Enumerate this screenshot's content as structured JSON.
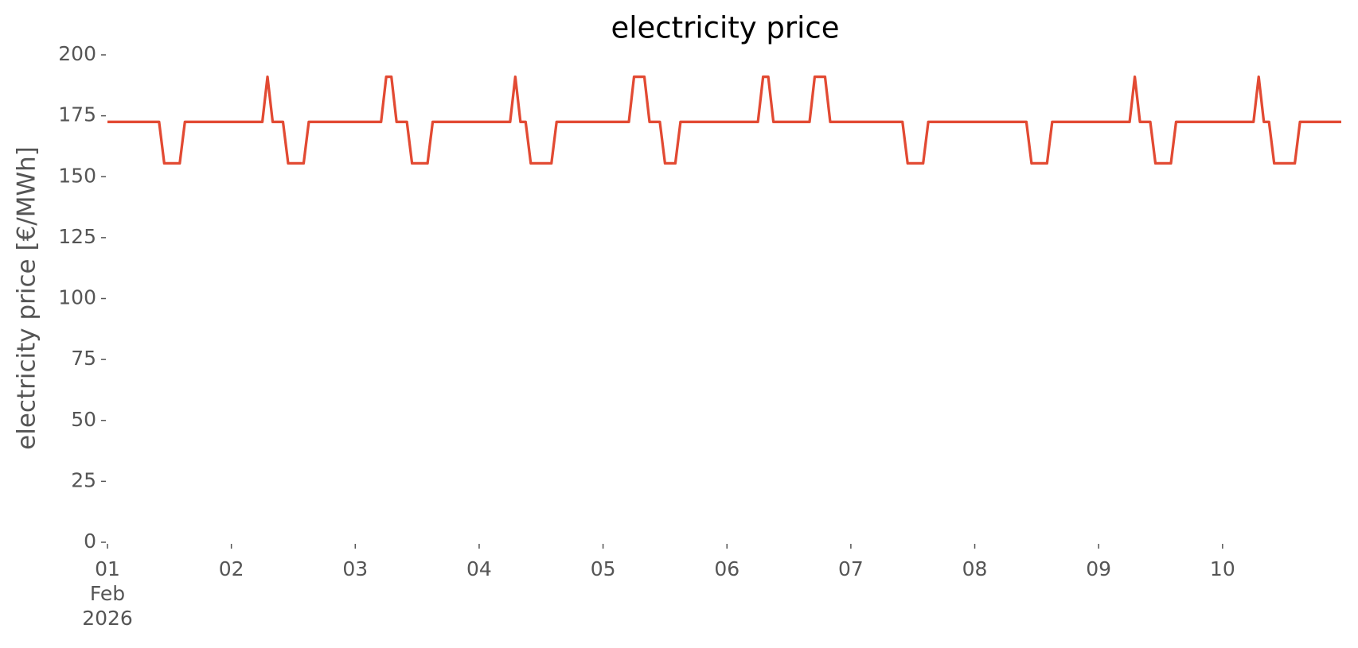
{
  "chart_data": {
    "type": "line",
    "title": "electricity price",
    "ylabel": "electricity price [€/MWh]",
    "series": [
      {
        "name": "electricity price",
        "color": "#e24a33",
        "x": [
          "2026-02-01T00:00",
          "2026-02-01T10:00",
          "2026-02-01T11:00",
          "2026-02-01T14:00",
          "2026-02-01T15:00",
          "2026-02-02T06:00",
          "2026-02-02T07:00",
          "2026-02-02T08:00",
          "2026-02-02T10:00",
          "2026-02-02T11:00",
          "2026-02-02T14:00",
          "2026-02-02T15:00",
          "2026-02-03T05:00",
          "2026-02-03T06:00",
          "2026-02-03T07:00",
          "2026-02-03T08:00",
          "2026-02-03T10:00",
          "2026-02-03T11:00",
          "2026-02-03T14:00",
          "2026-02-03T15:00",
          "2026-02-04T06:00",
          "2026-02-04T07:00",
          "2026-02-04T08:00",
          "2026-02-04T09:00",
          "2026-02-04T10:00",
          "2026-02-04T14:00",
          "2026-02-04T15:00",
          "2026-02-05T05:00",
          "2026-02-05T06:00",
          "2026-02-05T08:00",
          "2026-02-05T09:00",
          "2026-02-05T11:00",
          "2026-02-05T12:00",
          "2026-02-05T14:00",
          "2026-02-05T15:00",
          "2026-02-06T06:00",
          "2026-02-06T07:00",
          "2026-02-06T08:00",
          "2026-02-06T09:00",
          "2026-02-06T16:00",
          "2026-02-06T17:00",
          "2026-02-06T19:00",
          "2026-02-06T20:00",
          "2026-02-07T10:00",
          "2026-02-07T11:00",
          "2026-02-07T14:00",
          "2026-02-07T15:00",
          "2026-02-08T10:00",
          "2026-02-08T11:00",
          "2026-02-08T14:00",
          "2026-02-08T15:00",
          "2026-02-09T06:00",
          "2026-02-09T07:00",
          "2026-02-09T08:00",
          "2026-02-09T10:00",
          "2026-02-09T11:00",
          "2026-02-09T14:00",
          "2026-02-09T15:00",
          "2026-02-10T06:00",
          "2026-02-10T07:00",
          "2026-02-10T08:00",
          "2026-02-10T09:00",
          "2026-02-10T10:00",
          "2026-02-10T14:00",
          "2026-02-10T15:00",
          "2026-02-10T23:00"
        ],
        "values": [
          172.5,
          172.5,
          155.5,
          155.5,
          172.5,
          172.5,
          191,
          172.5,
          172.5,
          155.5,
          155.5,
          172.5,
          172.5,
          191,
          191,
          172.5,
          172.5,
          155.5,
          155.5,
          172.5,
          172.5,
          191,
          172.5,
          172.5,
          155.5,
          155.5,
          172.5,
          172.5,
          191,
          191,
          172.5,
          172.5,
          155.5,
          155.5,
          172.5,
          172.5,
          191,
          191,
          172.5,
          172.5,
          191,
          191,
          172.5,
          172.5,
          155.5,
          155.5,
          172.5,
          172.5,
          155.5,
          155.5,
          172.5,
          172.5,
          191,
          172.5,
          172.5,
          155.5,
          155.5,
          172.5,
          172.5,
          191,
          172.5,
          172.5,
          155.5,
          155.5,
          172.5,
          172.5
        ]
      }
    ],
    "xlim": [
      "2026-02-01T00:00",
      "2026-02-10T23:00"
    ],
    "xticks": [
      {
        "value": "2026-02-01T00:00",
        "label": "01\nFeb\n2026"
      },
      {
        "value": "2026-02-02T00:00",
        "label": "02"
      },
      {
        "value": "2026-02-03T00:00",
        "label": "03"
      },
      {
        "value": "2026-02-04T00:00",
        "label": "04"
      },
      {
        "value": "2026-02-05T00:00",
        "label": "05"
      },
      {
        "value": "2026-02-06T00:00",
        "label": "06"
      },
      {
        "value": "2026-02-07T00:00",
        "label": "07"
      },
      {
        "value": "2026-02-08T00:00",
        "label": "08"
      },
      {
        "value": "2026-02-09T00:00",
        "label": "09"
      },
      {
        "value": "2026-02-10T00:00",
        "label": "10"
      }
    ],
    "ylim": [
      0,
      200
    ],
    "yticks": [
      0,
      25,
      50,
      75,
      100,
      125,
      150,
      175,
      200
    ],
    "grid": false
  }
}
